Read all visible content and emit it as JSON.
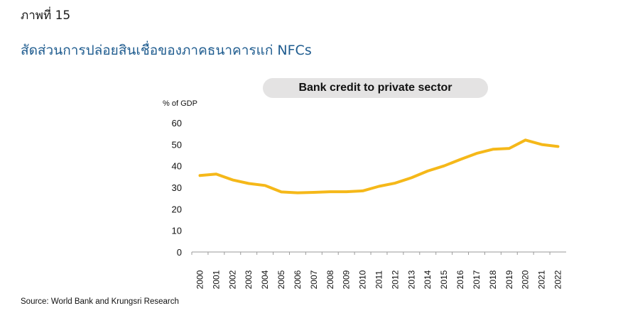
{
  "figure": {
    "label": "ภาพที่ 15",
    "title": "สัดส่วนการปล่อยสินเชื่อของภาคธนาคารแก่ NFCs",
    "source": "Source: World Bank and Krungsri Research"
  },
  "chart_data": {
    "type": "line",
    "title": "Bank credit to private sector",
    "ylabel": "% of GDP",
    "xlabel": "",
    "ylim": [
      0,
      60
    ],
    "yticks": [
      0,
      10,
      20,
      30,
      40,
      50,
      60
    ],
    "grid": false,
    "legend": "none",
    "color": "#f5b819",
    "categories": [
      "2000",
      "2001",
      "2002",
      "2003",
      "2004",
      "2005",
      "2006",
      "2007",
      "2008",
      "2009",
      "2010",
      "2011",
      "2012",
      "2013",
      "2014",
      "2015",
      "2016",
      "2017",
      "2018",
      "2019",
      "2020",
      "2021",
      "2022"
    ],
    "series": [
      {
        "values": [
          35.5,
          36.2,
          33.5,
          31.8,
          30.9,
          27.9,
          27.5,
          27.7,
          28.0,
          28.0,
          28.4,
          30.5,
          32.0,
          34.5,
          37.6,
          40.0,
          43.0,
          45.8,
          47.7,
          48.1,
          52.0,
          49.9,
          49.0
        ]
      }
    ]
  }
}
